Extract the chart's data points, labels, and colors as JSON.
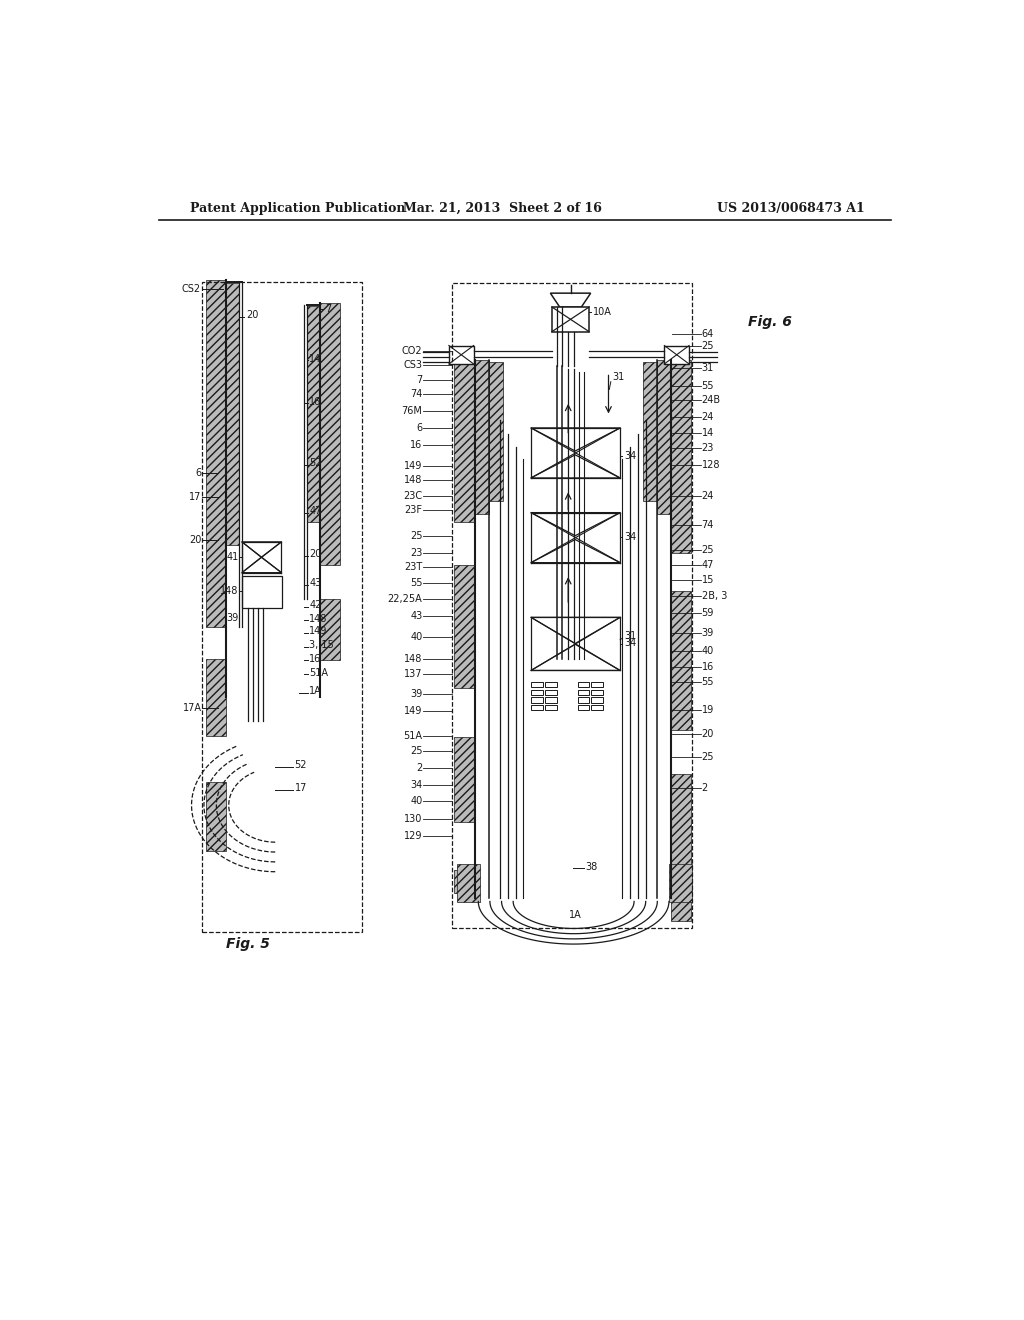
{
  "title_line1": "Patent Application Publication",
  "title_line2": "Mar. 21, 2013  Sheet 2 of 16",
  "title_line3": "US 2013/0068473 A1",
  "background_color": "#ffffff",
  "line_color": "#1a1a1a"
}
